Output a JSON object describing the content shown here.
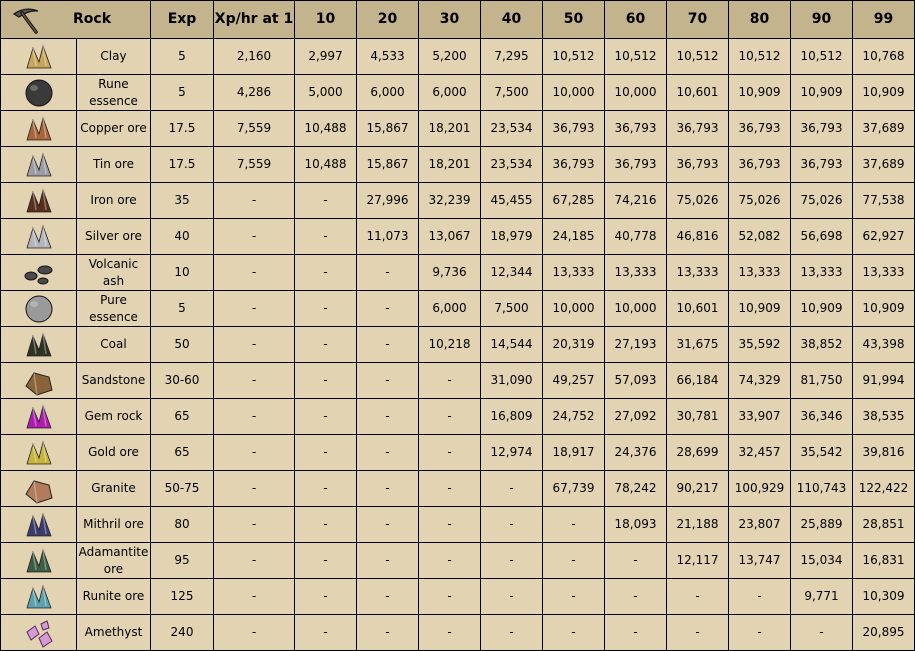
{
  "header": {
    "icon": "pickaxe-icon",
    "rock": "Rock",
    "exp": "Exp",
    "xphr1": "Xp/hr at 1",
    "levels": [
      "10",
      "20",
      "30",
      "40",
      "50",
      "60",
      "70",
      "80",
      "90",
      "99"
    ]
  },
  "rows": [
    {
      "name": "Clay",
      "icon": "clay-ore-icon",
      "color": "#c9a45a",
      "shape": "rock",
      "exp": "5",
      "values": [
        "2,160",
        "2,997",
        "4,533",
        "5,200",
        "7,295",
        "10,512",
        "10,512",
        "10,512",
        "10,512",
        "10,512",
        "10,768"
      ]
    },
    {
      "name": "Rune essence",
      "icon": "rune-essence-icon",
      "color": "#3a3a3a",
      "shape": "round",
      "exp": "5",
      "values": [
        "4,286",
        "5,000",
        "6,000",
        "6,000",
        "7,500",
        "10,000",
        "10,000",
        "10,601",
        "10,909",
        "10,909",
        "10,909"
      ]
    },
    {
      "name": "Copper ore",
      "icon": "copper-ore-icon",
      "color": "#a8653a",
      "shape": "rock",
      "exp": "17.5",
      "values": [
        "7,559",
        "10,488",
        "15,867",
        "18,201",
        "23,534",
        "36,793",
        "36,793",
        "36,793",
        "36,793",
        "36,793",
        "37,689"
      ]
    },
    {
      "name": "Tin ore",
      "icon": "tin-ore-icon",
      "color": "#9c9ca4",
      "shape": "rock",
      "exp": "17.5",
      "values": [
        "7,559",
        "10,488",
        "15,867",
        "18,201",
        "23,534",
        "36,793",
        "36,793",
        "36,793",
        "36,793",
        "36,793",
        "37,689"
      ]
    },
    {
      "name": "Iron ore",
      "icon": "iron-ore-icon",
      "color": "#5a2e1e",
      "shape": "rock",
      "exp": "35",
      "values": [
        "-",
        "-",
        "27,996",
        "32,239",
        "45,455",
        "67,285",
        "74,216",
        "75,026",
        "75,026",
        "75,026",
        "77,538"
      ]
    },
    {
      "name": "Silver ore",
      "icon": "silver-ore-icon",
      "color": "#b4b4bc",
      "shape": "rock",
      "exp": "40",
      "values": [
        "-",
        "-",
        "11,073",
        "13,067",
        "18,979",
        "24,185",
        "40,778",
        "46,816",
        "52,082",
        "56,698",
        "62,927"
      ]
    },
    {
      "name": "Volcanic ash",
      "icon": "volcanic-ash-icon",
      "color": "#4a4a4a",
      "shape": "ash",
      "exp": "10",
      "values": [
        "-",
        "-",
        "-",
        "9,736",
        "12,344",
        "13,333",
        "13,333",
        "13,333",
        "13,333",
        "13,333",
        "13,333"
      ]
    },
    {
      "name": "Pure essence",
      "icon": "pure-essence-icon",
      "color": "#9a9a9a",
      "shape": "round",
      "exp": "5",
      "values": [
        "-",
        "-",
        "-",
        "6,000",
        "7,500",
        "10,000",
        "10,000",
        "10,601",
        "10,909",
        "10,909",
        "10,909"
      ]
    },
    {
      "name": "Coal",
      "icon": "coal-icon",
      "color": "#2e3424",
      "shape": "rock",
      "exp": "50",
      "values": [
        "-",
        "-",
        "-",
        "10,218",
        "14,544",
        "20,319",
        "27,193",
        "31,675",
        "35,592",
        "38,852",
        "43,398"
      ]
    },
    {
      "name": "Sandstone",
      "icon": "sandstone-icon",
      "color": "#8a6438",
      "shape": "block",
      "exp": "30-60",
      "values": [
        "-",
        "-",
        "-",
        "-",
        "31,090",
        "49,257",
        "57,093",
        "66,184",
        "74,329",
        "81,750",
        "91,994"
      ]
    },
    {
      "name": "Gem rock",
      "icon": "gem-rock-icon",
      "color": "#b01cb0",
      "shape": "rock",
      "exp": "65",
      "values": [
        "-",
        "-",
        "-",
        "-",
        "16,809",
        "24,752",
        "27,092",
        "30,781",
        "33,907",
        "36,346",
        "38,535"
      ]
    },
    {
      "name": "Gold ore",
      "icon": "gold-ore-icon",
      "color": "#c8b43a",
      "shape": "rock",
      "exp": "65",
      "values": [
        "-",
        "-",
        "-",
        "-",
        "12,974",
        "18,917",
        "24,376",
        "28,699",
        "32,457",
        "35,542",
        "39,816"
      ]
    },
    {
      "name": "Granite",
      "icon": "granite-icon",
      "color": "#b07c5a",
      "shape": "block",
      "exp": "50-75",
      "values": [
        "-",
        "-",
        "-",
        "-",
        "-",
        "67,739",
        "78,242",
        "90,217",
        "100,929",
        "110,743",
        "122,422"
      ]
    },
    {
      "name": "Mithril ore",
      "icon": "mithril-ore-icon",
      "color": "#3c3c6c",
      "shape": "rock",
      "exp": "80",
      "values": [
        "-",
        "-",
        "-",
        "-",
        "-",
        "-",
        "18,093",
        "21,188",
        "23,807",
        "25,889",
        "28,851"
      ]
    },
    {
      "name": "Adamantite ore",
      "icon": "adamantite-ore-icon",
      "color": "#3c5c44",
      "shape": "rock",
      "exp": "95",
      "values": [
        "-",
        "-",
        "-",
        "-",
        "-",
        "-",
        "-",
        "12,117",
        "13,747",
        "15,034",
        "16,831"
      ]
    },
    {
      "name": "Runite ore",
      "icon": "runite-ore-icon",
      "color": "#5ca0b0",
      "shape": "rock",
      "exp": "125",
      "values": [
        "-",
        "-",
        "-",
        "-",
        "-",
        "-",
        "-",
        "-",
        "-",
        "9,771",
        "10,309"
      ]
    },
    {
      "name": "Amethyst",
      "icon": "amethyst-icon",
      "color": "#d49ad4",
      "shape": "crystal",
      "exp": "240",
      "values": [
        "-",
        "-",
        "-",
        "-",
        "-",
        "-",
        "-",
        "-",
        "-",
        "-",
        "20,895"
      ]
    }
  ]
}
